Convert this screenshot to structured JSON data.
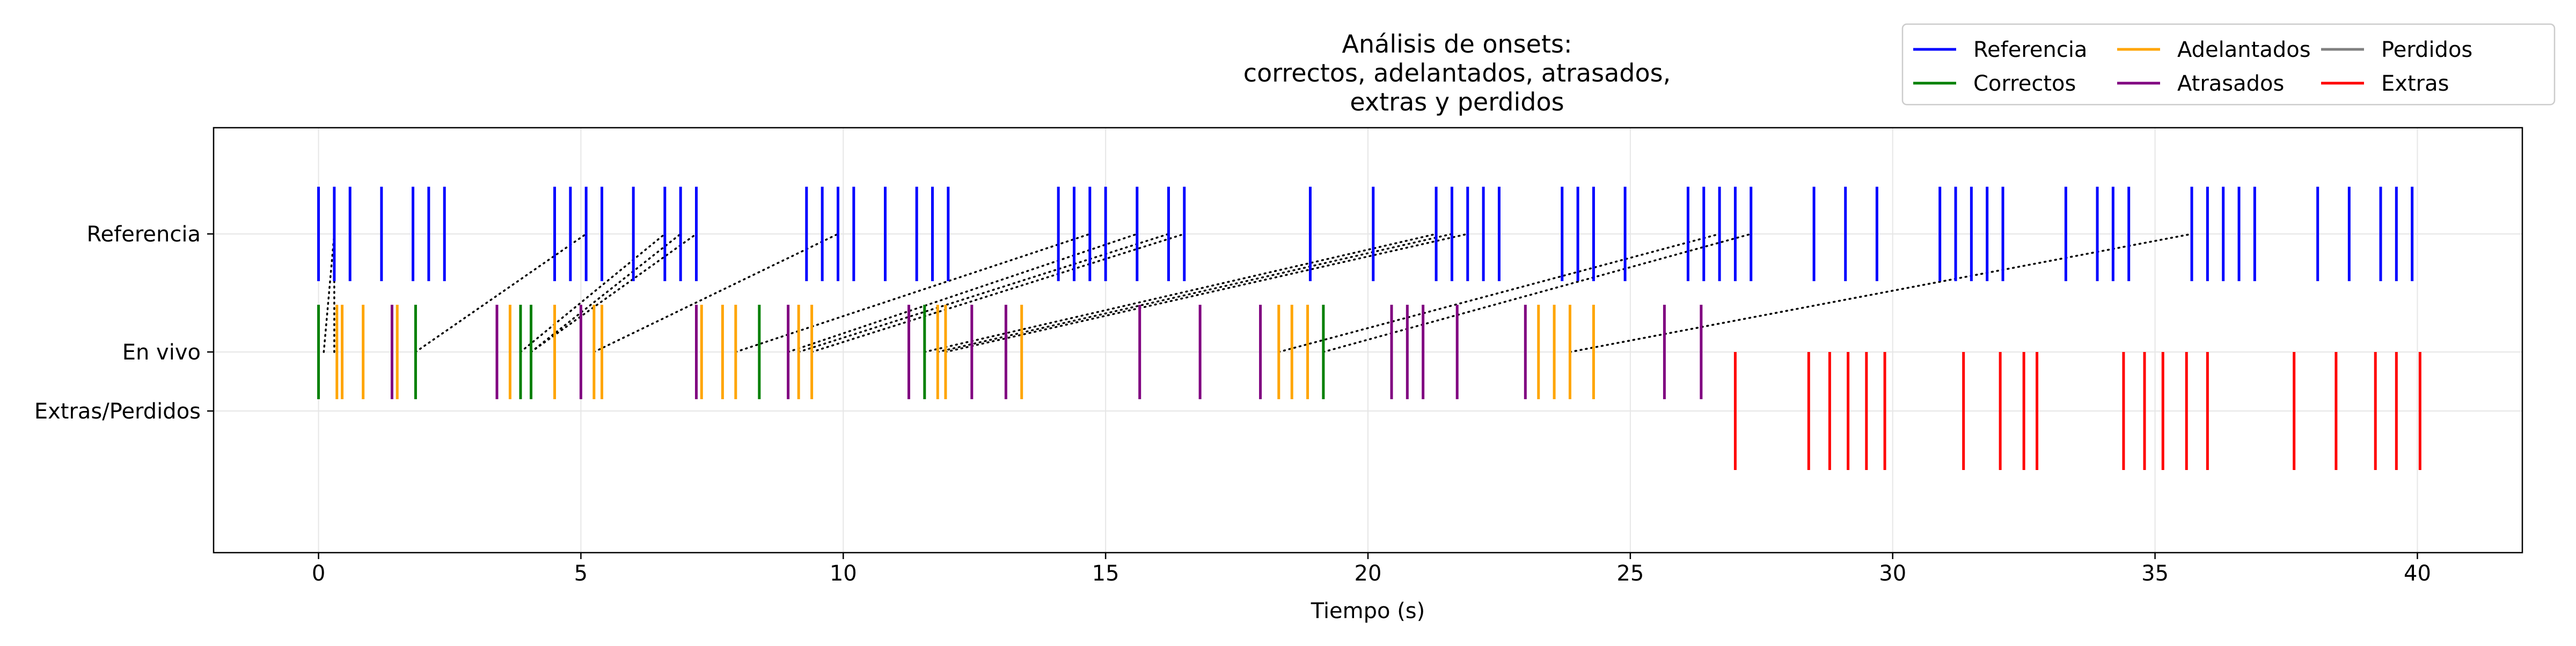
{
  "chart_data": {
    "type": "eventplot",
    "title": "Análisis de onsets:\ncorrectos, adelantados, atrasados,\nextras y perdidos",
    "xlabel": "Tiempo (s)",
    "ylabel": "",
    "xlim": [
      -2,
      42
    ],
    "ylim": [
      -1.2,
      2.4
    ],
    "grid": true,
    "legend_position": "upper-right",
    "x_ticks": [
      0,
      5,
      10,
      15,
      20,
      25,
      30,
      35,
      40
    ],
    "y_ticks": [
      {
        "label": "Referencia",
        "y": 1.5
      },
      {
        "label": "En vivo",
        "y": 0.5
      },
      {
        "label": "Extras/Perdidos",
        "y": 0
      }
    ],
    "legend": [
      {
        "name": "Referencia",
        "color": "#0000ff"
      },
      {
        "name": "Correctos",
        "color": "#008000"
      },
      {
        "name": "Adelantados",
        "color": "#ffa500"
      },
      {
        "name": "Atrasados",
        "color": "#800080"
      },
      {
        "name": "Perdidos",
        "color": "#808080"
      },
      {
        "name": "Extras",
        "color": "#ff0000"
      }
    ],
    "series": [
      {
        "name": "Referencia",
        "color": "#0000ff",
        "y_range": [
          1.1,
          1.9
        ],
        "x": [
          0,
          0.3,
          0.6,
          1.2,
          1.8,
          2.1,
          2.4,
          4.5,
          4.8,
          5.1,
          5.4,
          6.0,
          6.6,
          6.9,
          7.2,
          9.3,
          9.6,
          9.9,
          10.2,
          10.8,
          11.4,
          11.7,
          12.0,
          14.1,
          14.4,
          14.7,
          15.0,
          15.6,
          16.2,
          16.5,
          18.9,
          20.1,
          21.3,
          21.6,
          21.9,
          22.2,
          22.5,
          23.7,
          24.0,
          24.3,
          24.9,
          26.1,
          26.4,
          26.7,
          27.0,
          27.3,
          28.5,
          29.1,
          29.7,
          30.9,
          31.2,
          31.5,
          31.8,
          32.1,
          33.3,
          33.9,
          34.2,
          34.5,
          35.7,
          36.0,
          36.3,
          36.6,
          36.9,
          38.1,
          38.7,
          39.3,
          39.6,
          39.9
        ]
      },
      {
        "name": "Correctos",
        "color": "#008000",
        "y_range": [
          0.1,
          0.9
        ],
        "x": [
          0,
          1.85,
          3.85,
          4.05,
          8.4,
          11.55,
          19.15
        ]
      },
      {
        "name": "Adelantados",
        "color": "#ffa500",
        "y_range": [
          0.1,
          0.9
        ],
        "x": [
          0.35,
          0.45,
          0.85,
          1.5,
          3.65,
          4.5,
          5.25,
          5.4,
          7.3,
          7.7,
          7.95,
          9.15,
          9.4,
          11.8,
          11.95,
          13.4,
          18.3,
          18.55,
          18.85,
          23.25,
          23.55,
          23.85,
          24.3
        ]
      },
      {
        "name": "Atrasados",
        "color": "#800080",
        "y_range": [
          0.1,
          0.9
        ],
        "x": [
          1.4,
          3.4,
          5.0,
          7.2,
          8.95,
          11.25,
          12.45,
          13.1,
          15.65,
          16.8,
          17.95,
          20.45,
          20.75,
          21.05,
          21.7,
          23.0,
          25.65,
          26.35
        ]
      },
      {
        "name": "Extras",
        "color": "#ff0000",
        "y_range": [
          -0.5,
          0.5
        ],
        "x": [
          27.0,
          28.4,
          28.8,
          29.15,
          29.5,
          29.85,
          31.35,
          32.05,
          32.5,
          32.75,
          34.4,
          34.8,
          35.15,
          35.6,
          36.0,
          37.65,
          38.45,
          39.2,
          39.6,
          40.05
        ]
      }
    ],
    "matches": [
      [
        0.1,
        0.3
      ],
      [
        0.3,
        0.3
      ],
      [
        1.85,
        5.1
      ],
      [
        3.85,
        6.6
      ],
      [
        4.05,
        6.9
      ],
      [
        4.05,
        7.2
      ],
      [
        5.25,
        9.9
      ],
      [
        7.95,
        14.7
      ],
      [
        8.95,
        15.6
      ],
      [
        9.15,
        16.2
      ],
      [
        9.4,
        16.5
      ],
      [
        11.55,
        21.3
      ],
      [
        11.8,
        21.6
      ],
      [
        11.95,
        21.9
      ],
      [
        18.3,
        26.7
      ],
      [
        19.15,
        27.3
      ],
      [
        23.85,
        35.7
      ]
    ]
  }
}
